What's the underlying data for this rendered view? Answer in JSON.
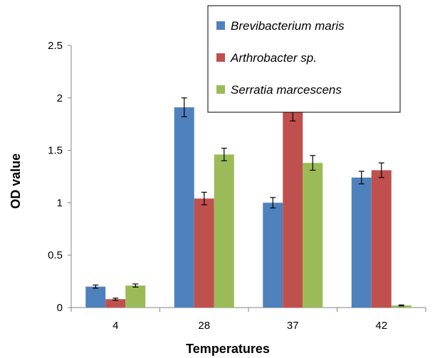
{
  "chart_data": {
    "type": "bar",
    "xlabel": "Temperatures",
    "ylabel": "OD value",
    "categories": [
      "4",
      "28",
      "37",
      "42"
    ],
    "ylim": [
      0,
      2.5
    ],
    "yticks": [
      "0",
      "0.5",
      "1",
      "1.5",
      "2",
      "2.5"
    ],
    "grid": false,
    "legend": "top-right",
    "series": [
      {
        "name": "Brevibacterium maris",
        "color": "#4F81BD",
        "values": [
          0.2,
          1.91,
          1.0,
          1.24
        ],
        "errors": [
          0.015,
          0.09,
          0.05,
          0.06
        ]
      },
      {
        "name": "Arthrobacter sp.",
        "color": "#C0504D",
        "values": [
          0.08,
          1.04,
          1.86,
          1.31
        ],
        "errors": [
          0.01,
          0.06,
          0.08,
          0.07
        ]
      },
      {
        "name": "Serratia marcescens",
        "color": "#9BBB59",
        "values": [
          0.21,
          1.46,
          1.38,
          0.02
        ],
        "errors": [
          0.015,
          0.06,
          0.07,
          0.005
        ]
      }
    ]
  }
}
